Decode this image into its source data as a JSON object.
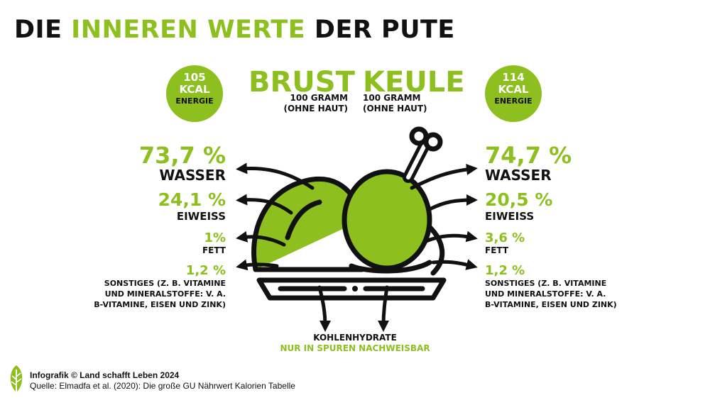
{
  "title": {
    "part1": "DIE ",
    "part2": "INNEREN WERTE",
    "part3": " DER PUTE"
  },
  "colors": {
    "accent": "#8dbf1f",
    "text": "#111111",
    "background": "#ffffff"
  },
  "brust": {
    "name": "BRUST",
    "amount": "100 GRAMM",
    "note": "(OHNE HAUT)",
    "energy_value": "105",
    "energy_unit": "KCAL",
    "energy_label": "ENERGIE",
    "wasser_value": "73,7 %",
    "wasser_label": "WASSER",
    "eiweiss_value": "24,1 %",
    "eiweiss_label": "EIWEISS",
    "fett_value": "1%",
    "fett_label": "FETT",
    "sonstiges_value": "1,2 %",
    "sonstiges_line1": "SONSTIGES (Z. B. VITAMINE",
    "sonstiges_line2": "UND MINERALSTOFFE: V. A.",
    "sonstiges_line3": "B-VITAMINE, EISEN UND ZINK)"
  },
  "keule": {
    "name": "KEULE",
    "amount": "100 GRAMM",
    "note": "(OHNE HAUT)",
    "energy_value": "114",
    "energy_unit": "KCAL",
    "energy_label": "ENERGIE",
    "wasser_value": "74,7 %",
    "wasser_label": "WASSER",
    "eiweiss_value": "20,5 %",
    "eiweiss_label": "EIWEISS",
    "fett_value": "3,6 %",
    "fett_label": "FETT",
    "sonstiges_value": "1,2 %",
    "sonstiges_line1": "SONSTIGES (Z. B. VITAMINE",
    "sonstiges_line2": "UND MINERALSTOFFE: V. A.",
    "sonstiges_line3": "B-VITAMINE, EISEN UND ZINK)"
  },
  "kohlenhydrate": {
    "label": "KOHLENHYDRATE",
    "note": "NUR IN SPUREN NACHWEISBAR"
  },
  "credit": {
    "line1": "Infografik © Land schafft Leben 2024",
    "line2": "Quelle: Elmadfa et al. (2020): Die große GU Nährwert Kalorien Tabelle"
  },
  "icons": {
    "logo": "leaf-logo-icon",
    "illustration": "turkey-roast-icon"
  }
}
